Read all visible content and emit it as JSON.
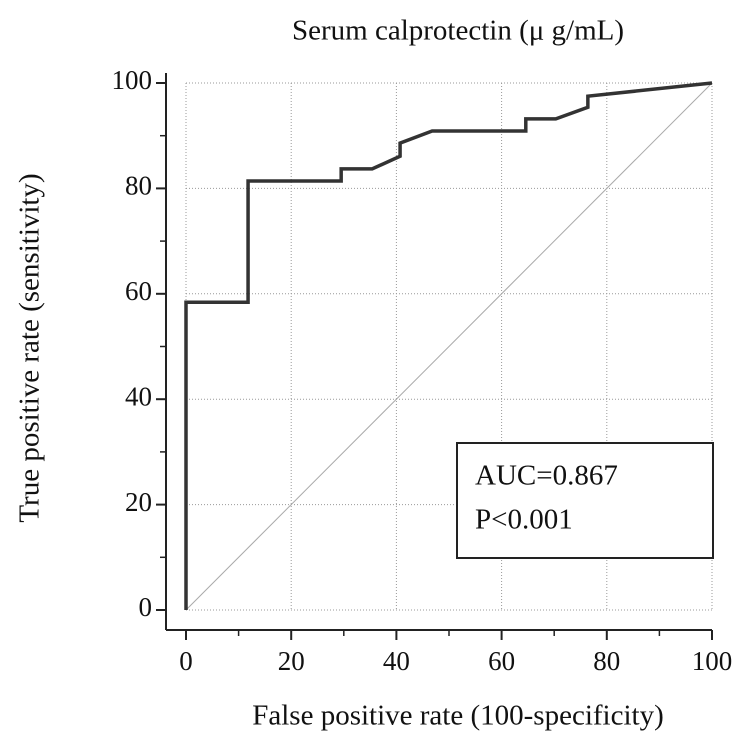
{
  "chart_data": {
    "type": "line",
    "title": "Serum calprotectin (μ g/mL)",
    "x_label": "False positive rate (100-specificity)",
    "y_label": "True positive rate (sensitivity)",
    "x": [
      0,
      0,
      11.8,
      11.8,
      29.5,
      29.5,
      35.4,
      40.7,
      40.7,
      46.8,
      64.6,
      64.6,
      70.3,
      76.4,
      76.4,
      100
    ],
    "y": [
      0,
      58.4,
      58.4,
      81.4,
      81.4,
      83.7,
      83.7,
      86.1,
      88.6,
      90.9,
      90.9,
      93.2,
      93.2,
      95.4,
      97.5,
      100
    ],
    "color": "#333333",
    "xlim": [
      0,
      100
    ],
    "ylim": [
      0,
      100
    ],
    "xticks": [
      0,
      20,
      40,
      60,
      80,
      100
    ],
    "yticks": [
      0,
      20,
      40,
      60,
      80,
      100
    ],
    "grid": true,
    "annotations": [
      "AUC=0.867",
      "P<0.001"
    ]
  }
}
